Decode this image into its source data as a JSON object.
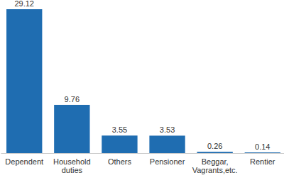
{
  "chart_data": {
    "type": "bar",
    "categories": [
      "Dependent",
      "Household duties",
      "Others",
      "Pensioner",
      "Beggar, Vagrants,etc.",
      "Rentier"
    ],
    "values": [
      29.12,
      9.76,
      3.55,
      3.53,
      0.26,
      0.14
    ],
    "color": "#1f6db1",
    "ylim": [
      0,
      29.12
    ],
    "data_labels": true,
    "tick_labels": "x",
    "grid": false
  }
}
